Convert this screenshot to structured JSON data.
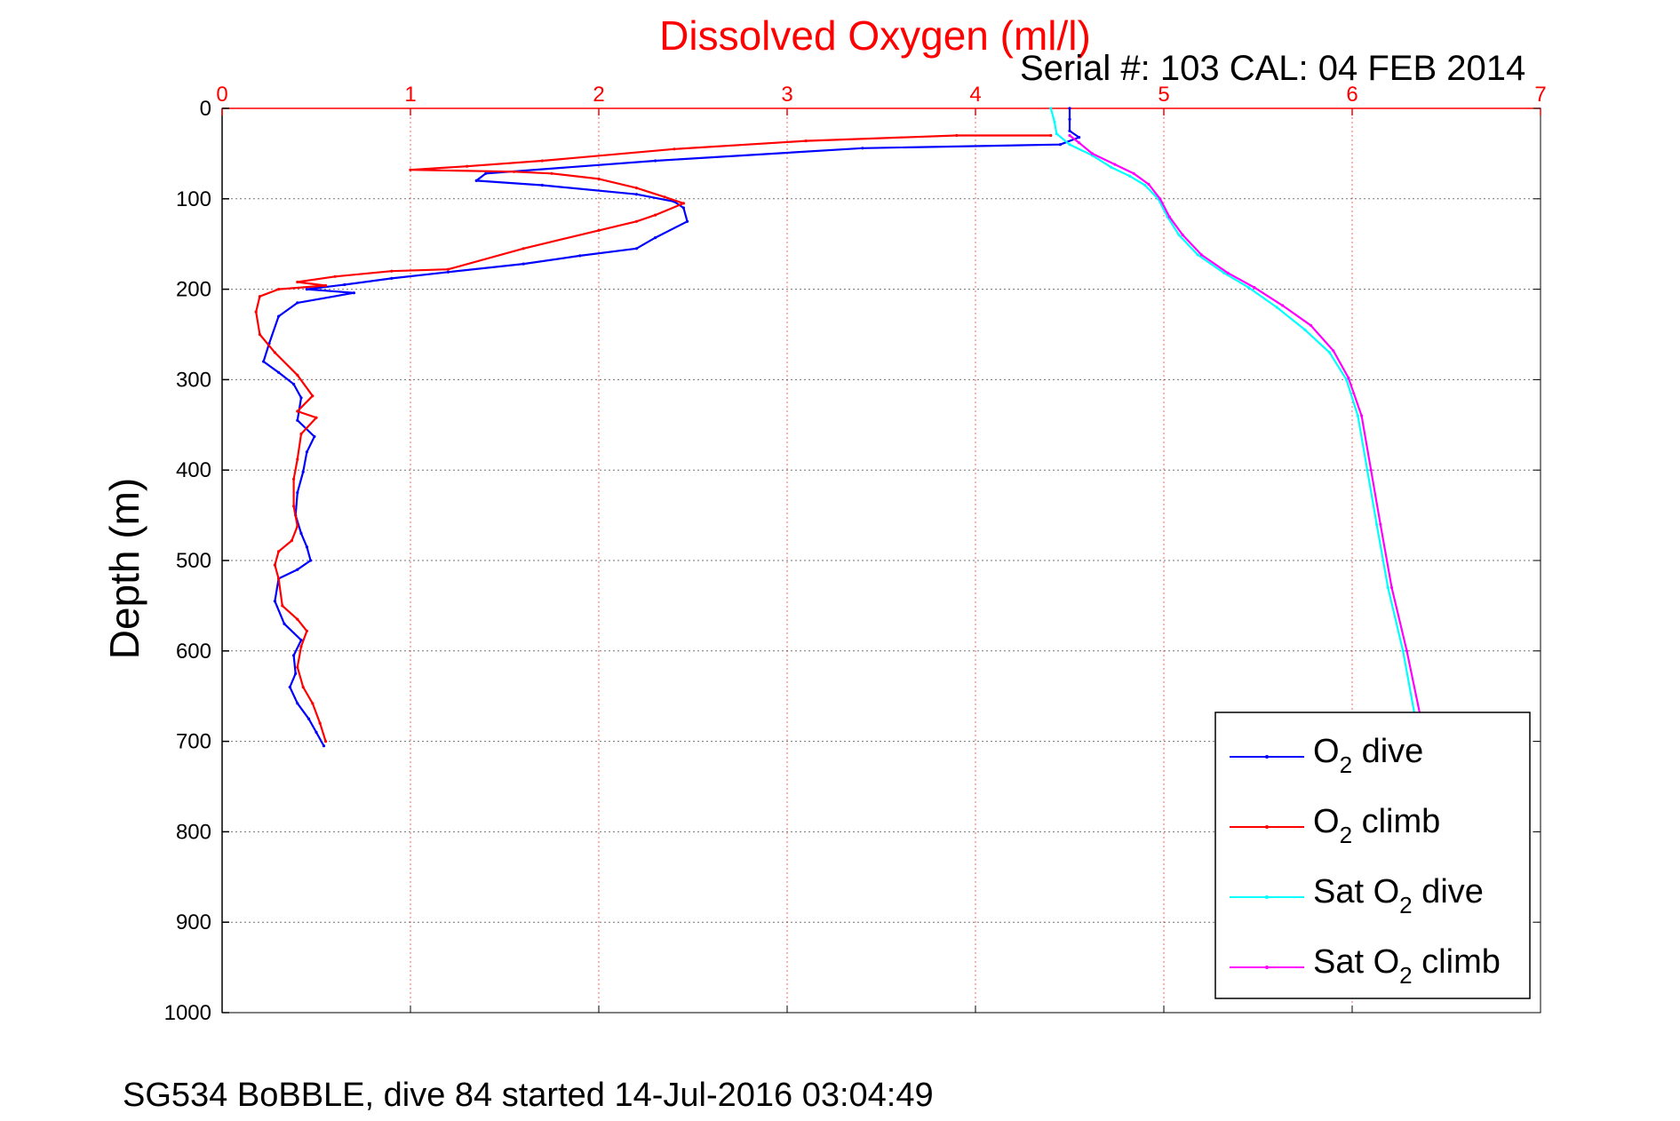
{
  "chart_data": {
    "type": "line",
    "title": "Dissolved Oxygen (ml/l)",
    "subtitle": "Serial #: 103  CAL: 04 FEB 2014",
    "xlabel": "",
    "ylabel": "Depth (m)",
    "footer": "SG534 BoBBLE, dive 84 started 14-Jul-2016 03:04:49",
    "xlim": [
      0,
      7
    ],
    "ylim": [
      0,
      1000
    ],
    "y_reversed": true,
    "x_axis_position": "top",
    "x_ticks": [
      "0",
      "1",
      "2",
      "3",
      "4",
      "5",
      "6",
      "7"
    ],
    "y_ticks": [
      "0",
      "100",
      "200",
      "300",
      "400",
      "500",
      "600",
      "700",
      "800",
      "900",
      "1000"
    ],
    "grid": true,
    "legend_position": "bottom-right",
    "series": [
      {
        "name": "O2 dive",
        "legend_main": "O",
        "legend_sub": "2",
        "legend_rest": " dive",
        "color": "#0000ff",
        "points": [
          [
            4.5,
            0
          ],
          [
            4.5,
            12
          ],
          [
            4.5,
            25
          ],
          [
            4.55,
            32
          ],
          [
            4.45,
            40
          ],
          [
            3.4,
            44
          ],
          [
            2.3,
            58
          ],
          [
            1.4,
            72
          ],
          [
            1.35,
            80
          ],
          [
            1.7,
            85
          ],
          [
            2.2,
            95
          ],
          [
            2.4,
            103
          ],
          [
            2.45,
            110
          ],
          [
            2.47,
            125
          ],
          [
            2.3,
            143
          ],
          [
            2.2,
            155
          ],
          [
            1.9,
            163
          ],
          [
            1.6,
            172
          ],
          [
            1.2,
            181
          ],
          [
            0.9,
            188
          ],
          [
            0.65,
            195
          ],
          [
            0.45,
            200
          ],
          [
            0.7,
            204
          ],
          [
            0.4,
            215
          ],
          [
            0.3,
            230
          ],
          [
            0.25,
            260
          ],
          [
            0.22,
            280
          ],
          [
            0.3,
            292
          ],
          [
            0.38,
            305
          ],
          [
            0.42,
            320
          ],
          [
            0.4,
            345
          ],
          [
            0.49,
            363
          ],
          [
            0.45,
            380
          ],
          [
            0.43,
            402
          ],
          [
            0.4,
            425
          ],
          [
            0.39,
            450
          ],
          [
            0.42,
            470
          ],
          [
            0.45,
            485
          ],
          [
            0.47,
            500
          ],
          [
            0.4,
            510
          ],
          [
            0.3,
            520
          ],
          [
            0.28,
            545
          ],
          [
            0.33,
            570
          ],
          [
            0.42,
            588
          ],
          [
            0.38,
            605
          ],
          [
            0.39,
            625
          ],
          [
            0.36,
            640
          ],
          [
            0.4,
            658
          ],
          [
            0.46,
            675
          ],
          [
            0.5,
            690
          ],
          [
            0.54,
            705
          ]
        ]
      },
      {
        "name": "O2 climb",
        "legend_main": "O",
        "legend_sub": "2",
        "legend_rest": " climb",
        "color": "#ff0000",
        "points": [
          [
            4.4,
            30
          ],
          [
            3.9,
            30
          ],
          [
            3.1,
            36
          ],
          [
            2.4,
            45
          ],
          [
            1.7,
            58
          ],
          [
            1.3,
            64
          ],
          [
            1.0,
            68
          ],
          [
            1.55,
            70
          ],
          [
            1.75,
            72
          ],
          [
            2.0,
            78
          ],
          [
            2.2,
            88
          ],
          [
            2.35,
            98
          ],
          [
            2.45,
            105
          ],
          [
            2.3,
            118
          ],
          [
            2.2,
            125
          ],
          [
            2.0,
            135
          ],
          [
            1.6,
            155
          ],
          [
            1.2,
            178
          ],
          [
            0.9,
            180
          ],
          [
            0.6,
            186
          ],
          [
            0.4,
            192
          ],
          [
            0.55,
            196
          ],
          [
            0.3,
            200
          ],
          [
            0.2,
            208
          ],
          [
            0.18,
            225
          ],
          [
            0.2,
            250
          ],
          [
            0.28,
            270
          ],
          [
            0.4,
            295
          ],
          [
            0.48,
            318
          ],
          [
            0.4,
            335
          ],
          [
            0.5,
            342
          ],
          [
            0.42,
            360
          ],
          [
            0.4,
            388
          ],
          [
            0.38,
            410
          ],
          [
            0.38,
            440
          ],
          [
            0.4,
            462
          ],
          [
            0.37,
            478
          ],
          [
            0.3,
            490
          ],
          [
            0.28,
            505
          ],
          [
            0.3,
            520
          ],
          [
            0.32,
            550
          ],
          [
            0.4,
            565
          ],
          [
            0.45,
            578
          ],
          [
            0.42,
            595
          ],
          [
            0.4,
            618
          ],
          [
            0.43,
            640
          ],
          [
            0.48,
            658
          ],
          [
            0.52,
            680
          ],
          [
            0.55,
            700
          ]
        ]
      },
      {
        "name": "Sat O2 dive",
        "legend_main": "Sat O",
        "legend_sub": "2",
        "legend_rest": " dive",
        "color": "#00ffff",
        "points": [
          [
            4.4,
            0
          ],
          [
            4.42,
            15
          ],
          [
            4.43,
            28
          ],
          [
            4.5,
            40
          ],
          [
            4.62,
            52
          ],
          [
            4.72,
            65
          ],
          [
            4.82,
            75
          ],
          [
            4.9,
            85
          ],
          [
            4.97,
            100
          ],
          [
            5.02,
            120
          ],
          [
            5.08,
            140
          ],
          [
            5.18,
            162
          ],
          [
            5.32,
            182
          ],
          [
            5.45,
            198
          ],
          [
            5.6,
            220
          ],
          [
            5.75,
            245
          ],
          [
            5.88,
            270
          ],
          [
            5.97,
            300
          ],
          [
            6.03,
            340
          ],
          [
            6.08,
            400
          ],
          [
            6.13,
            460
          ],
          [
            6.19,
            530
          ],
          [
            6.27,
            600
          ],
          [
            6.34,
            680
          ]
        ]
      },
      {
        "name": "Sat O2 climb",
        "legend_main": "Sat O",
        "legend_sub": "2",
        "legend_rest": " climb",
        "color": "#ff00ff",
        "points": [
          [
            4.5,
            30
          ],
          [
            4.55,
            38
          ],
          [
            4.62,
            50
          ],
          [
            4.74,
            62
          ],
          [
            4.84,
            72
          ],
          [
            4.92,
            84
          ],
          [
            4.98,
            100
          ],
          [
            5.03,
            120
          ],
          [
            5.1,
            140
          ],
          [
            5.2,
            162
          ],
          [
            5.34,
            182
          ],
          [
            5.48,
            198
          ],
          [
            5.63,
            218
          ],
          [
            5.78,
            240
          ],
          [
            5.9,
            268
          ],
          [
            5.98,
            298
          ],
          [
            6.05,
            340
          ],
          [
            6.1,
            400
          ],
          [
            6.15,
            460
          ],
          [
            6.21,
            530
          ],
          [
            6.29,
            600
          ],
          [
            6.37,
            680
          ]
        ]
      }
    ]
  }
}
